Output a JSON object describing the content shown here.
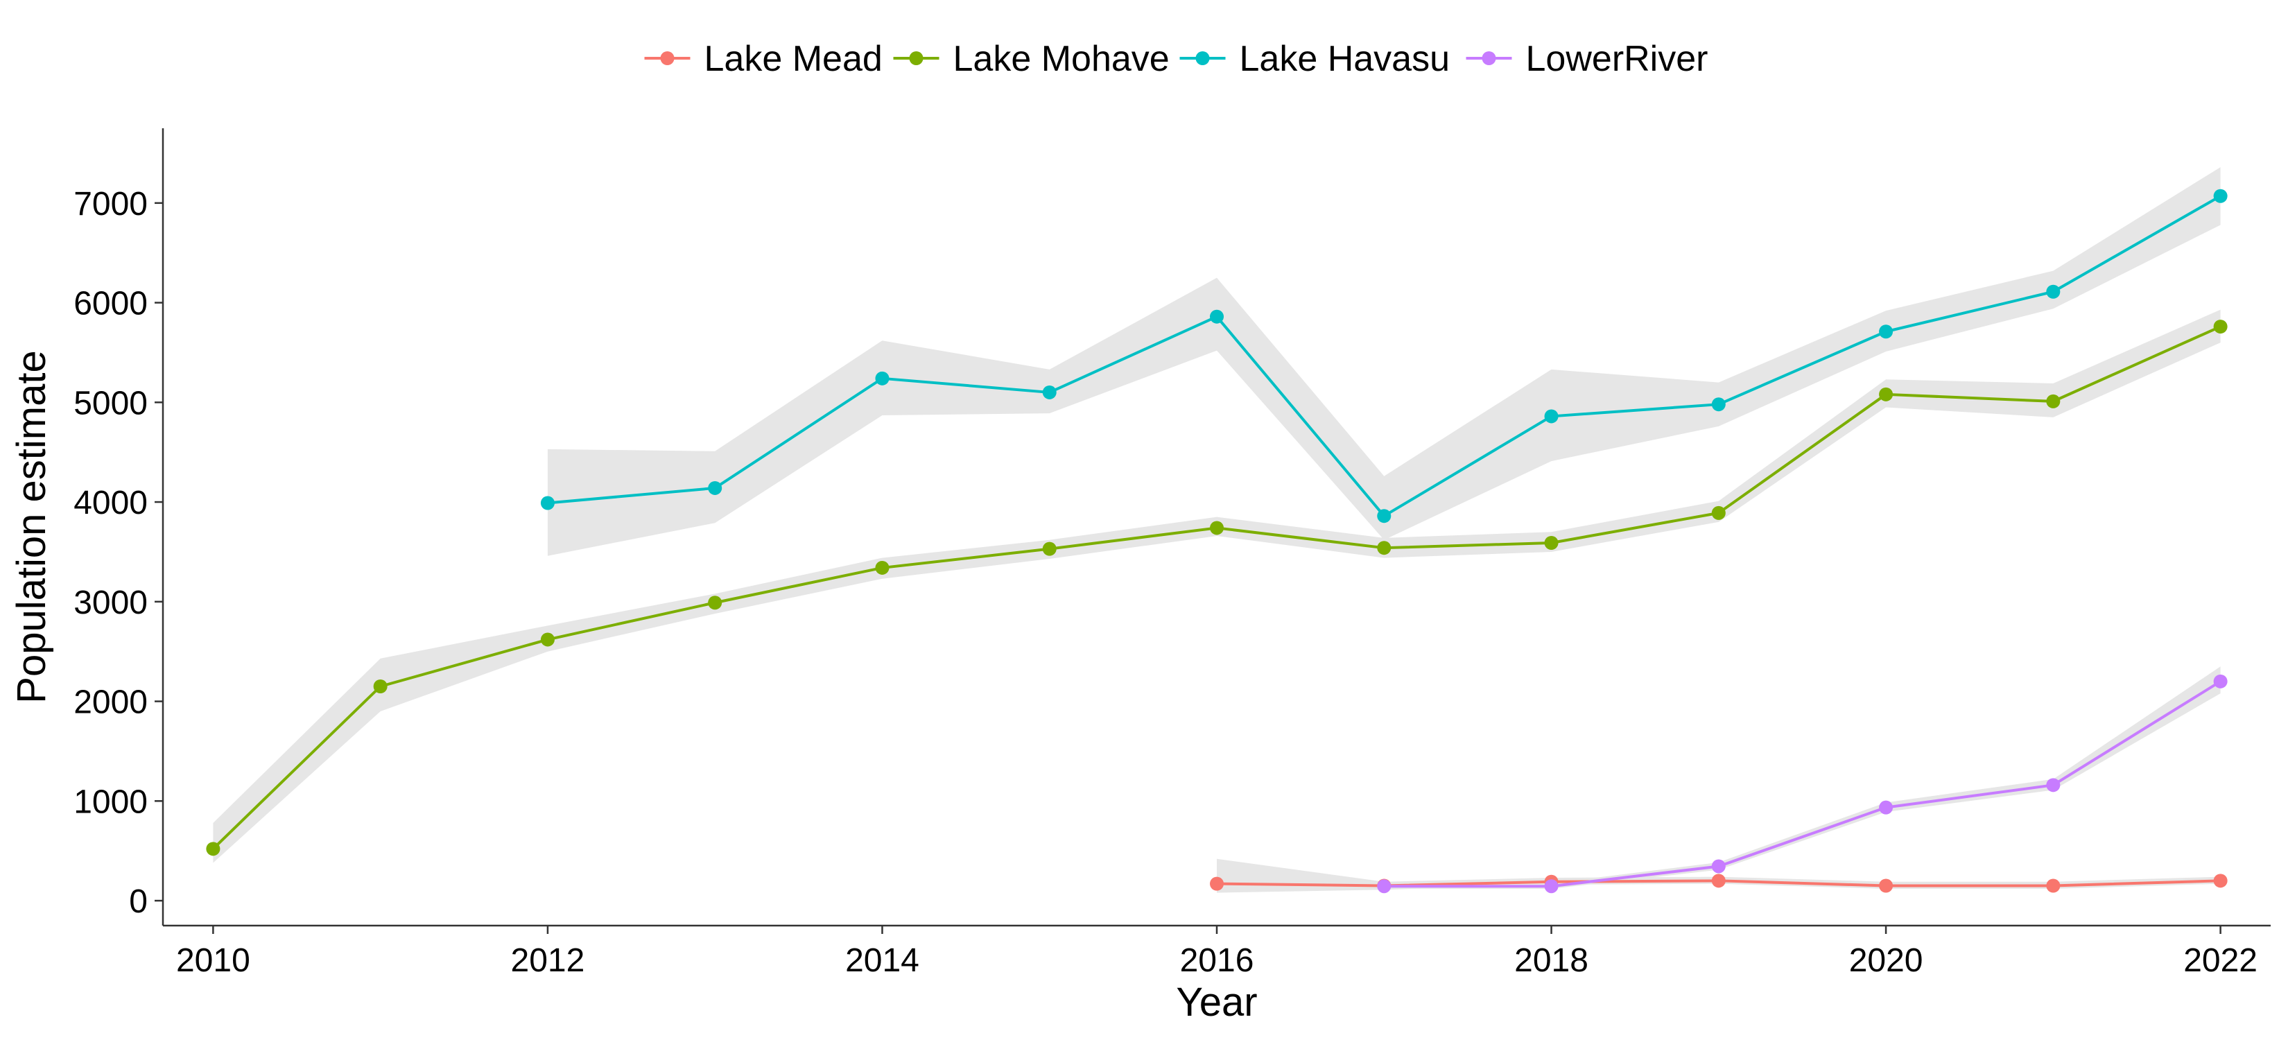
{
  "chart_data": {
    "type": "line",
    "title": "",
    "xlabel": "Year",
    "ylabel": "Population estimate",
    "xlim": [
      2009.7,
      2022.3
    ],
    "ylim": [
      -250,
      7750
    ],
    "x_ticks": [
      2010,
      2012,
      2014,
      2016,
      2018,
      2020,
      2022
    ],
    "y_ticks": [
      0,
      1000,
      2000,
      3000,
      4000,
      5000,
      6000,
      7000
    ],
    "grid": false,
    "legend_position": "top",
    "confidence_band_color": "#e6e6e6",
    "series": [
      {
        "name": "Lake Mead",
        "color": "#F8766D",
        "x": [
          2016,
          2017,
          2018,
          2019,
          2020,
          2021,
          2022
        ],
        "y": [
          170,
          150,
          190,
          200,
          150,
          150,
          200
        ],
        "lower": [
          80,
          110,
          160,
          170,
          120,
          120,
          170
        ],
        "upper": [
          420,
          190,
          230,
          240,
          190,
          190,
          240
        ]
      },
      {
        "name": "Lake Mohave",
        "color": "#7CAE00",
        "x": [
          2010,
          2011,
          2012,
          2013,
          2014,
          2015,
          2016,
          2017,
          2018,
          2019,
          2020,
          2021,
          2022
        ],
        "y": [
          520,
          2150,
          2620,
          2990,
          3340,
          3530,
          3740,
          3540,
          3590,
          3890,
          5080,
          5010,
          5760
        ],
        "lower": [
          380,
          1900,
          2500,
          2880,
          3230,
          3430,
          3660,
          3440,
          3500,
          3800,
          4950,
          4850,
          5600
        ],
        "upper": [
          780,
          2430,
          2760,
          3080,
          3440,
          3620,
          3850,
          3640,
          3700,
          4010,
          5230,
          5190,
          5930
        ]
      },
      {
        "name": "Lake Havasu",
        "color": "#00BFC4",
        "x": [
          2012,
          2013,
          2014,
          2015,
          2016,
          2017,
          2018,
          2019,
          2020,
          2021,
          2022
        ],
        "y": [
          3990,
          4140,
          5240,
          5100,
          5860,
          3860,
          4860,
          4980,
          5710,
          6110,
          7070
        ],
        "lower": [
          3460,
          3790,
          4870,
          4890,
          5520,
          3620,
          4410,
          4760,
          5510,
          5940,
          6780
        ],
        "upper": [
          4530,
          4510,
          5620,
          5330,
          6250,
          4260,
          5330,
          5200,
          5920,
          6320,
          7360
        ]
      },
      {
        "name": "LowerRiver",
        "color": "#C77CFF",
        "x": [
          2017,
          2018,
          2019,
          2020,
          2021,
          2022
        ],
        "y": [
          145,
          145,
          345,
          935,
          1160,
          2200
        ],
        "lower": [
          120,
          120,
          310,
          890,
          1110,
          2080
        ],
        "upper": [
          175,
          175,
          385,
          985,
          1220,
          2350
        ]
      }
    ]
  }
}
